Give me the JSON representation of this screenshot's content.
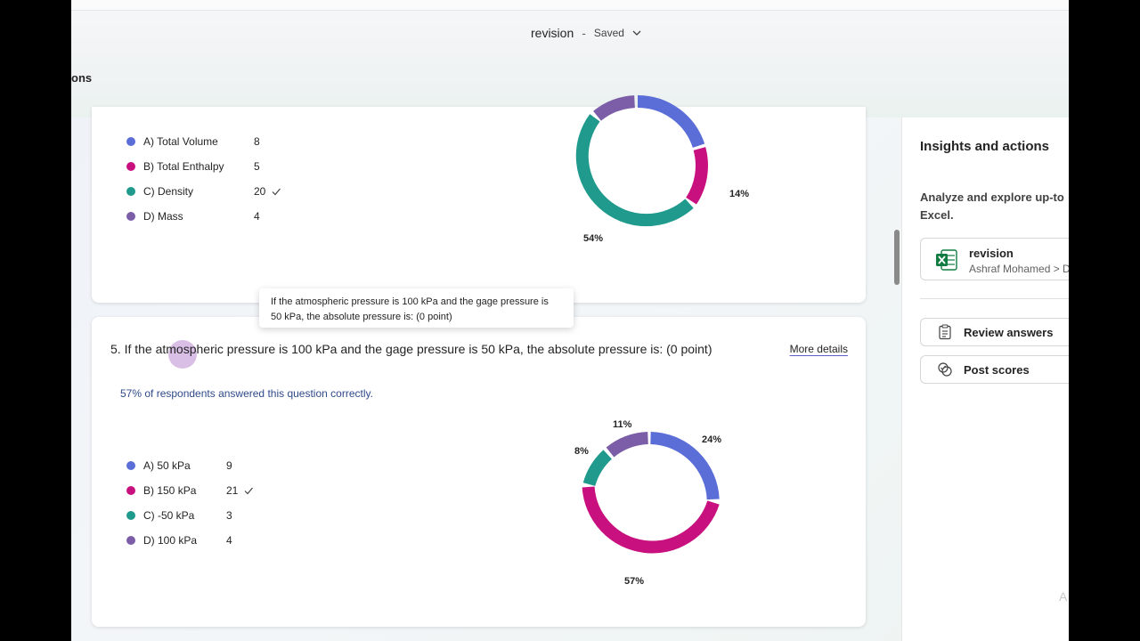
{
  "header": {
    "doc_title": "revision",
    "separator": "-",
    "status": "Saved",
    "nav_fragment": "ons"
  },
  "question4": {
    "options": [
      {
        "label": "A) Total Volume",
        "count": "8",
        "color": "#5b6ed8",
        "correct": false
      },
      {
        "label": "B) Total Enthalpy",
        "count": "5",
        "color": "#c8107f",
        "correct": false
      },
      {
        "label": "C) Density",
        "count": "20",
        "color": "#1f9a8c",
        "correct": true
      },
      {
        "label": "D) Mass",
        "count": "4",
        "color": "#7b5ea7",
        "correct": false
      }
    ],
    "labels": {
      "b": "14%",
      "c": "54%"
    }
  },
  "tooltip": {
    "text": "If the atmospheric pressure is 100 kPa and the gage pressure is 50 kPa, the absolute pressure is: (0 point)"
  },
  "question5": {
    "title": "5. If the atmospheric pressure is 100 kPa and the gage pressure is 50 kPa, the absolute pressure is: (0 point)",
    "more_details": "More details",
    "stat": "57% of respondents answered this question correctly.",
    "options": [
      {
        "label": "A) 50 kPa",
        "count": "9",
        "color": "#5b6ed8",
        "correct": false
      },
      {
        "label": "B) 150 kPa",
        "count": "21",
        "color": "#c8107f",
        "correct": true
      },
      {
        "label": "C) -50 kPa",
        "count": "3",
        "color": "#1f9a8c",
        "correct": false
      },
      {
        "label": "D) 100 kPa",
        "count": "4",
        "color": "#7b5ea7",
        "correct": false
      }
    ],
    "labels": {
      "a": "24%",
      "b": "57%",
      "c": "8%",
      "d": "11%"
    }
  },
  "right_panel": {
    "title": "Insights and actions",
    "analyze_line1": "Analyze and explore up-to",
    "analyze_line2": "Excel.",
    "file_name": "revision",
    "file_path": "Ashraf Mohamed > D",
    "review_label": "Review answers",
    "post_label": "Post scores",
    "fade_text": "A"
  }
}
